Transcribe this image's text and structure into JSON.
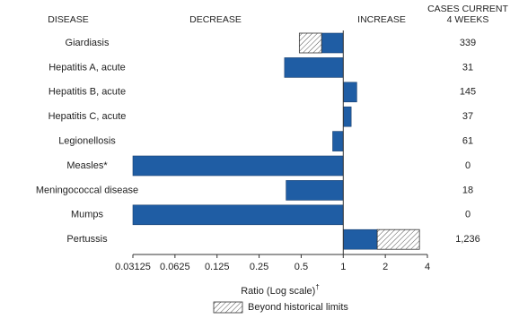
{
  "chart_data": {
    "type": "hbar",
    "headers": {
      "disease": "DISEASE",
      "decrease": "DECREASE",
      "increase": "INCREASE",
      "cases": [
        "CASES CURRENT",
        "4 WEEKS"
      ]
    },
    "categories": [
      "Giardiasis",
      "Hepatitis A, acute",
      "Hepatitis B, acute",
      "Hepatitis C, acute",
      "Legionellosis",
      "Measles*",
      "Meningococcal disease",
      "Mumps",
      "Pertussis"
    ],
    "values": [
      0.485,
      0.38,
      1.25,
      1.14,
      0.84,
      0.03125,
      0.39,
      0.03125,
      3.51
    ],
    "historical_limits": [
      0.7,
      null,
      null,
      null,
      null,
      null,
      null,
      null,
      1.75
    ],
    "cases": [
      "339",
      "31",
      "145",
      "37",
      "61",
      "0",
      "18",
      "0",
      "1,236"
    ],
    "color": "#1f5da4",
    "xscale": "log2",
    "xlim": [
      0.03125,
      4
    ],
    "xticks": [
      0.03125,
      0.0625,
      0.125,
      0.25,
      0.5,
      1,
      2,
      4
    ],
    "baseline": 1,
    "xlabel": "Ratio (Log scale)",
    "xlabel_mark": "†",
    "legend": "Beyond historical limits"
  }
}
